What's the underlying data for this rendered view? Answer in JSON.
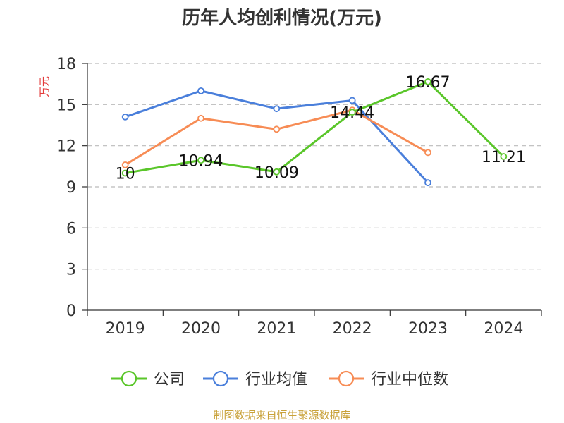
{
  "title": "历年人均创利情况(万元)",
  "source": "制图数据来自恒生聚源数据库",
  "colors": {
    "axis": "#333333",
    "grid": "#bbbbbb",
    "unit": "#e33b3b"
  },
  "chart_data": {
    "type": "line",
    "title": "历年人均创利情况(万元)",
    "ylabel": "万元",
    "ylim": [
      0,
      18
    ],
    "yticks": [
      0,
      3,
      6,
      9,
      12,
      15,
      18
    ],
    "grid": true,
    "legend_position": "bottom",
    "categories": [
      "2019",
      "2020",
      "2021",
      "2022",
      "2023",
      "2024"
    ],
    "series": [
      {
        "name": "公司",
        "color": "#5ac62a",
        "values": [
          10,
          10.94,
          10.09,
          14.44,
          16.67,
          11.21
        ],
        "labels": [
          "10",
          "10.94",
          "10.09",
          "14.44",
          "16.67",
          "11.21"
        ]
      },
      {
        "name": "行业均值",
        "color": "#4a7fdb",
        "values": [
          14.1,
          16.0,
          14.7,
          15.3,
          9.3,
          null
        ]
      },
      {
        "name": "行业中位数",
        "color": "#f78c55",
        "values": [
          10.6,
          14.0,
          13.2,
          14.6,
          11.5,
          null
        ]
      }
    ]
  }
}
